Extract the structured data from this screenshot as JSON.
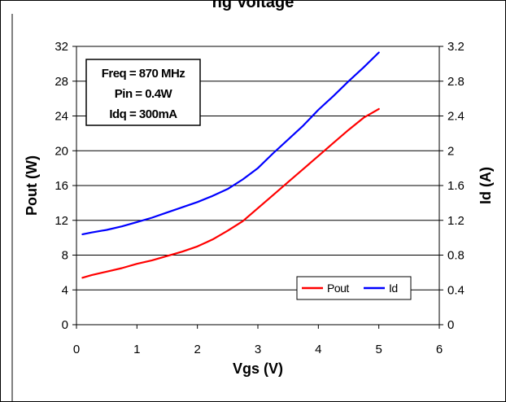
{
  "page": {
    "title_fragment": "ng Voltage"
  },
  "annotation": {
    "lines": [
      "Freq = 870 MHz",
      "Pin = 0.4W",
      "Idq = 300mA"
    ]
  },
  "chart_data": {
    "type": "line",
    "xlabel": "Vgs (V)",
    "ylabel_left": "Pout (W)",
    "ylabel_right": "Id (A)",
    "xlim": [
      0,
      6
    ],
    "ylim_left": [
      0,
      32
    ],
    "ylim_right": [
      0,
      3.2
    ],
    "xticks": [
      "0",
      "1",
      "2",
      "3",
      "4",
      "5",
      "6"
    ],
    "yticks_left": [
      "0",
      "4",
      "8",
      "12",
      "16",
      "20",
      "24",
      "28",
      "32"
    ],
    "yticks_right": [
      "0",
      "0.4",
      "0.8",
      "1.2",
      "1.6",
      "2",
      "2.4",
      "2.8",
      "3.2"
    ],
    "grid": true,
    "legend_position": "bottom-right",
    "series": [
      {
        "name": "Pout",
        "axis": "left",
        "color": "#ff0000",
        "x": [
          0.1,
          0.25,
          0.5,
          0.75,
          1.0,
          1.25,
          1.5,
          1.75,
          2.0,
          2.25,
          2.5,
          2.75,
          3.0,
          3.25,
          3.5,
          3.75,
          4.0,
          4.25,
          4.5,
          4.75,
          5.0
        ],
        "y": [
          5.4,
          5.7,
          6.1,
          6.5,
          7.0,
          7.4,
          7.9,
          8.4,
          9.0,
          9.8,
          10.8,
          11.9,
          13.4,
          14.9,
          16.4,
          17.9,
          19.4,
          20.9,
          22.4,
          23.8,
          24.8
        ]
      },
      {
        "name": "Id",
        "axis": "right",
        "color": "#0000ff",
        "x": [
          0.1,
          0.25,
          0.5,
          0.75,
          1.0,
          1.25,
          1.5,
          1.75,
          2.0,
          2.25,
          2.5,
          2.75,
          3.0,
          3.25,
          3.5,
          3.75,
          4.0,
          4.25,
          4.5,
          4.75,
          5.0
        ],
        "y": [
          1.04,
          1.06,
          1.09,
          1.13,
          1.18,
          1.23,
          1.29,
          1.35,
          1.41,
          1.48,
          1.56,
          1.67,
          1.8,
          1.97,
          2.13,
          2.29,
          2.47,
          2.63,
          2.8,
          2.96,
          3.13
        ]
      }
    ]
  }
}
